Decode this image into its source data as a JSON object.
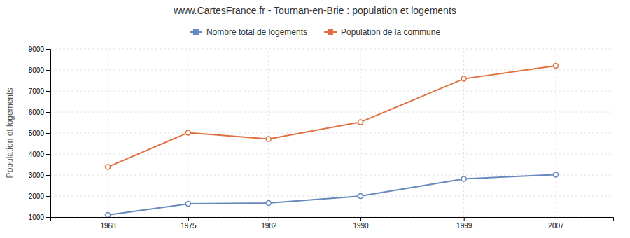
{
  "chart_data": {
    "type": "line",
    "title": "www.CartesFrance.fr - Tournan-en-Brie : population et logements",
    "y_label": "Population et logements",
    "x": [
      1968,
      1975,
      1982,
      1990,
      1999,
      2007
    ],
    "series": [
      {
        "name": "Nombre total de logements",
        "color": "#6688bb",
        "values": [
          1100,
          1630,
          1670,
          2000,
          2820,
          3020
        ]
      },
      {
        "name": "Population de la commune",
        "color": "#e07040",
        "values": [
          3380,
          5020,
          4720,
          5520,
          7580,
          8200
        ]
      }
    ],
    "xlim": [
      1963,
      2012
    ],
    "xticks": [
      1968,
      1975,
      1982,
      1990,
      1999,
      2007
    ],
    "ylim": [
      1000,
      9000
    ],
    "yticks": [
      1000,
      2000,
      3000,
      4000,
      5000,
      6000,
      7000,
      8000,
      9000
    ],
    "grid": true,
    "legend": "top",
    "marker": "circle"
  }
}
